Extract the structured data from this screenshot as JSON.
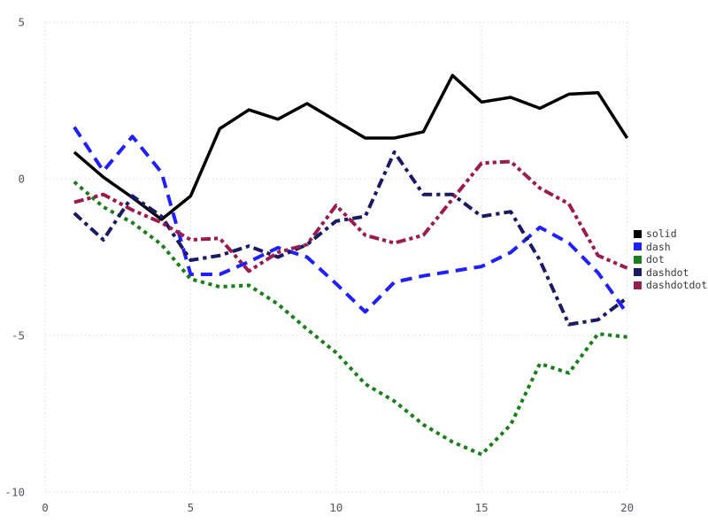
{
  "figure": {
    "background_color": "#ffffff",
    "grid_color": "#d9d9e6",
    "tick_label_color": "#55555f",
    "legend_text_color": "#3a3a3a"
  },
  "chart_data": {
    "type": "line",
    "title": "",
    "xlabel": "",
    "ylabel": "",
    "grid": true,
    "grid_style": "dotted",
    "legend_position": "right",
    "xlim": [
      0,
      20.6
    ],
    "ylim": [
      -10.6,
      5.4
    ],
    "x_ticks": [
      0,
      5,
      10,
      15,
      20
    ],
    "y_ticks": [
      5,
      0,
      -5,
      -10
    ],
    "x_tick_labels": [
      "0",
      "5",
      "10",
      "15",
      "20"
    ],
    "y_tick_labels": [
      "5",
      "0",
      "-5",
      "-10"
    ],
    "x": [
      1,
      2,
      3,
      4,
      5,
      6,
      7,
      8,
      9,
      10,
      11,
      12,
      13,
      14,
      15,
      16,
      17,
      18,
      19,
      20
    ],
    "series": [
      {
        "name": "solid",
        "color": "#000000",
        "line_style": "solid",
        "line_width": 3.5,
        "values": [
          0.85,
          0.05,
          -0.6,
          -1.3,
          -0.55,
          1.6,
          2.2,
          1.9,
          2.4,
          1.85,
          1.3,
          1.3,
          1.5,
          3.3,
          2.45,
          2.6,
          2.25,
          2.7,
          2.75,
          1.3
        ]
      },
      {
        "name": "dash",
        "color": "#1f1fff",
        "line_style": "dash",
        "line_width": 4,
        "values": [
          1.65,
          0.25,
          1.35,
          0.2,
          -3.05,
          -3.05,
          -2.65,
          -2.2,
          -2.5,
          -3.35,
          -4.25,
          -3.3,
          -3.1,
          -2.95,
          -2.8,
          -2.35,
          -1.55,
          -2.05,
          -3.0,
          -4.3
        ]
      },
      {
        "name": "dot",
        "color": "#1b7d1b",
        "line_style": "dot",
        "line_width": 4,
        "values": [
          -0.1,
          -0.9,
          -1.4,
          -2.1,
          -3.2,
          -3.45,
          -3.4,
          -4.0,
          -4.8,
          -5.55,
          -6.55,
          -7.1,
          -7.85,
          -8.4,
          -8.8,
          -7.85,
          -5.9,
          -6.2,
          -4.95,
          -5.05
        ]
      },
      {
        "name": "dashdot",
        "color": "#1a1a63",
        "line_style": "dashdot",
        "line_width": 4,
        "values": [
          -1.1,
          -1.95,
          -0.55,
          -1.2,
          -2.6,
          -2.45,
          -2.15,
          -2.5,
          -2.1,
          -1.35,
          -1.2,
          0.85,
          -0.5,
          -0.5,
          -1.2,
          -1.05,
          -2.6,
          -4.65,
          -4.5,
          -3.8
        ]
      },
      {
        "name": "dashdotdot",
        "color": "#9a1b4d",
        "line_style": "dashdotdot",
        "line_width": 4,
        "values": [
          -0.75,
          -0.5,
          -1.0,
          -1.4,
          -1.95,
          -1.9,
          -2.95,
          -2.35,
          -2.1,
          -0.85,
          -1.8,
          -2.05,
          -1.8,
          -0.65,
          0.5,
          0.55,
          -0.3,
          -0.8,
          -2.45,
          -2.85
        ]
      }
    ],
    "legend_entries": [
      "solid",
      "dash",
      "dot",
      "dashdot",
      "dashdotdot"
    ]
  }
}
